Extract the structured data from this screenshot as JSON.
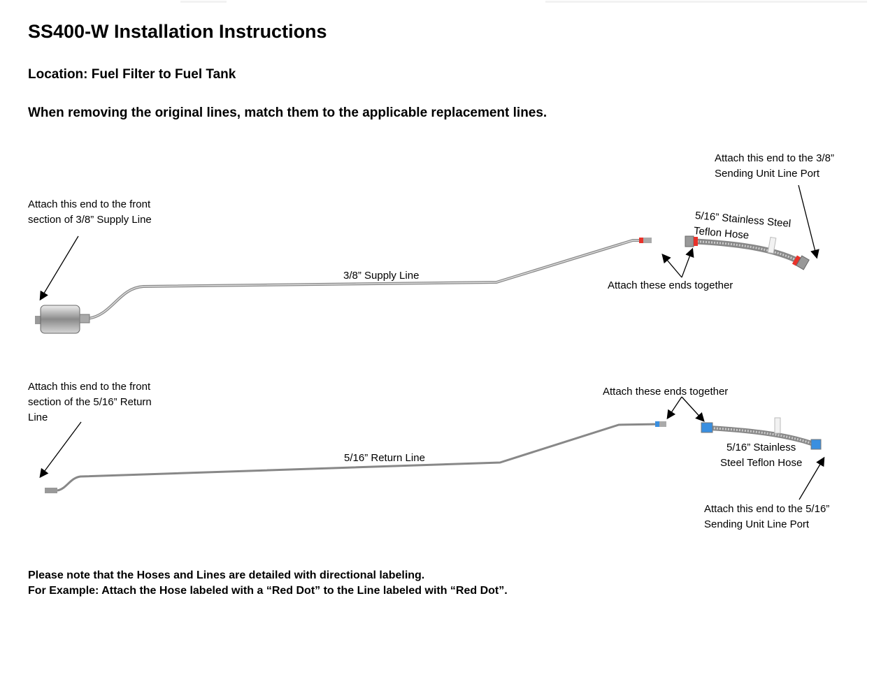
{
  "title": "SS400-W Installation Instructions",
  "location": "Location: Fuel Filter to Fuel Tank",
  "instruction": "When removing the original lines, match them to the applicable replacement lines.",
  "supply": {
    "front_label_1": "Attach this end to the front",
    "front_label_2": "section of 3/8” Supply Line",
    "line_label": "3/8” Supply Line",
    "together_label": "Attach these ends together",
    "hose_label_1": "5/16” Stainless Steel",
    "hose_label_2": "Teflon Hose",
    "port_label_1": "Attach this end to the 3/8”",
    "port_label_2": "Sending Unit Line Port",
    "marker_color": "#e8322a"
  },
  "return": {
    "front_label_1": "Attach this end to the front",
    "front_label_2": "section of the 5/16” Return",
    "front_label_3": "Line",
    "line_label": "5/16” Return Line",
    "together_label": "Attach these ends together",
    "hose_label_1": "5/16” Stainless",
    "hose_label_2": "Steel Teflon Hose",
    "port_label_1": "Attach this end to the 5/16”",
    "port_label_2": "Sending Unit Line Port",
    "marker_color": "#3a8fe0"
  },
  "notes": {
    "line1": "Please note that the Hoses and Lines are detailed with directional labeling.",
    "line2": "For Example: Attach the Hose labeled with a “Red Dot” to the Line labeled with “Red Dot”."
  }
}
